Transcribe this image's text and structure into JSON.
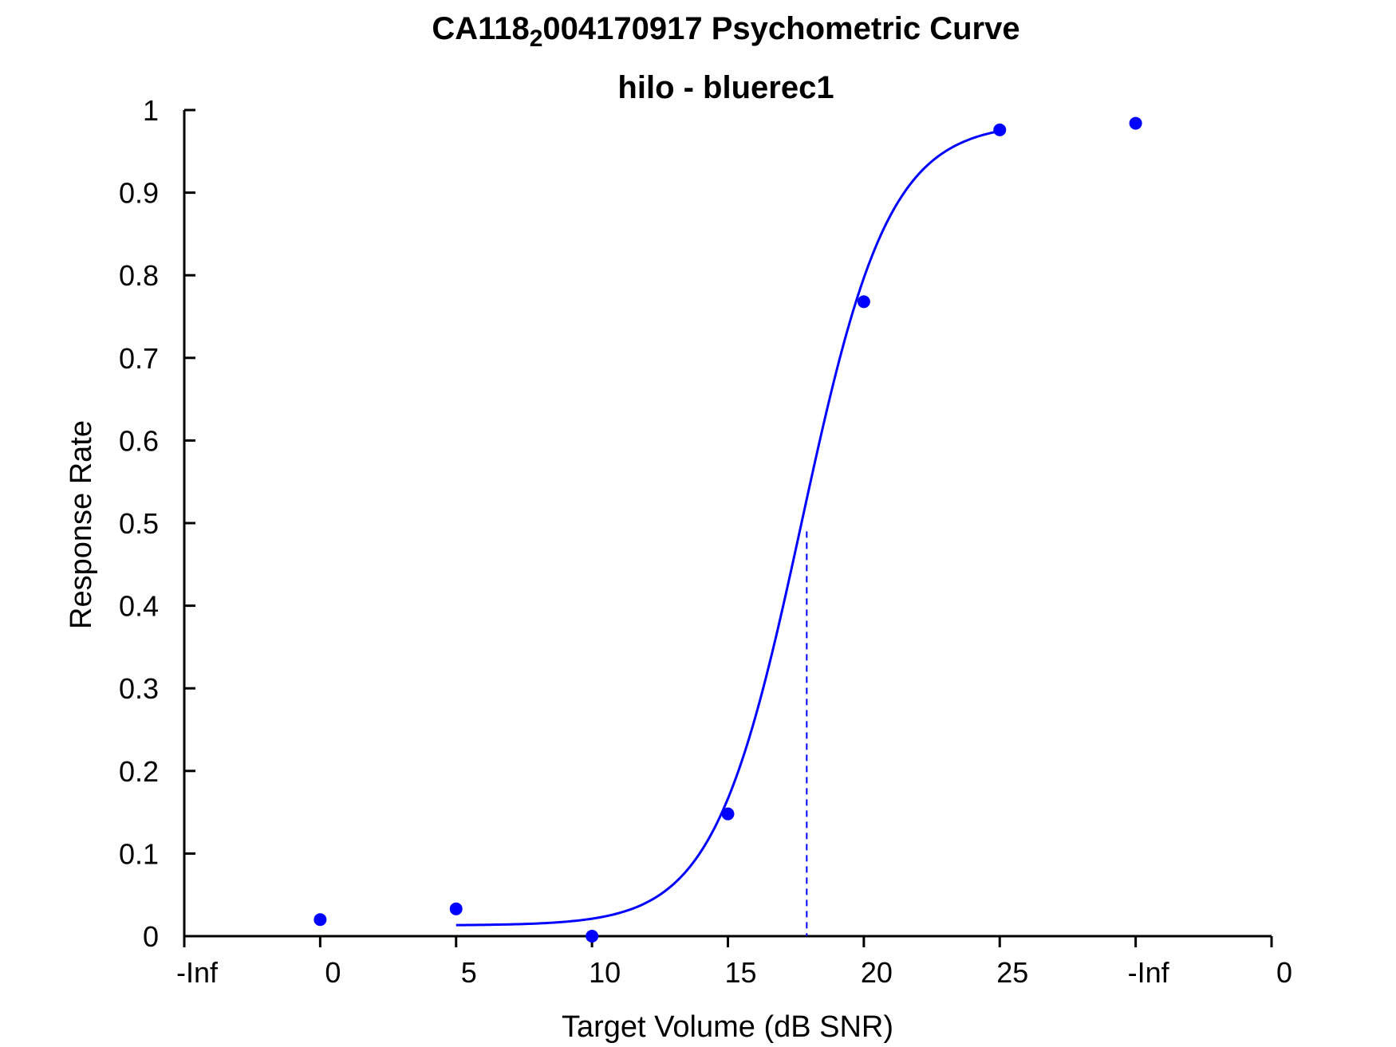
{
  "chart_data": {
    "type": "line",
    "title_parts": [
      "CA118",
      "2",
      "004170917 Psychometric Curve"
    ],
    "subtitle": "hilo - bluerec1",
    "xlabel": "Target Volume (dB SNR)",
    "ylabel": "Response Rate",
    "x_tick_labels": [
      "-Inf",
      "0",
      "5",
      "10",
      "15",
      "20",
      "25",
      "-Inf",
      "0"
    ],
    "y_tick_labels": [
      "0",
      "0.1",
      "0.2",
      "0.3",
      "0.4",
      "0.5",
      "0.6",
      "0.7",
      "0.8",
      "0.9",
      "1"
    ],
    "xlim": [
      -5,
      35
    ],
    "ylim": [
      0,
      1
    ],
    "grid": false,
    "series": [
      {
        "kind": "points",
        "x": [
          0,
          5,
          10,
          15,
          20,
          25,
          30
        ],
        "y": [
          0.02,
          0.033,
          0.0,
          0.148,
          0.768,
          0.976,
          0.984
        ]
      },
      {
        "kind": "fit",
        "x_range": [
          5,
          25
        ],
        "model": {
          "floor": 0.013,
          "ceiling": 0.985,
          "midpoint": 17.7,
          "slope": 0.62
        }
      }
    ],
    "threshold": {
      "x": 17.9,
      "y": 0.49
    },
    "color": "#0000ff"
  }
}
